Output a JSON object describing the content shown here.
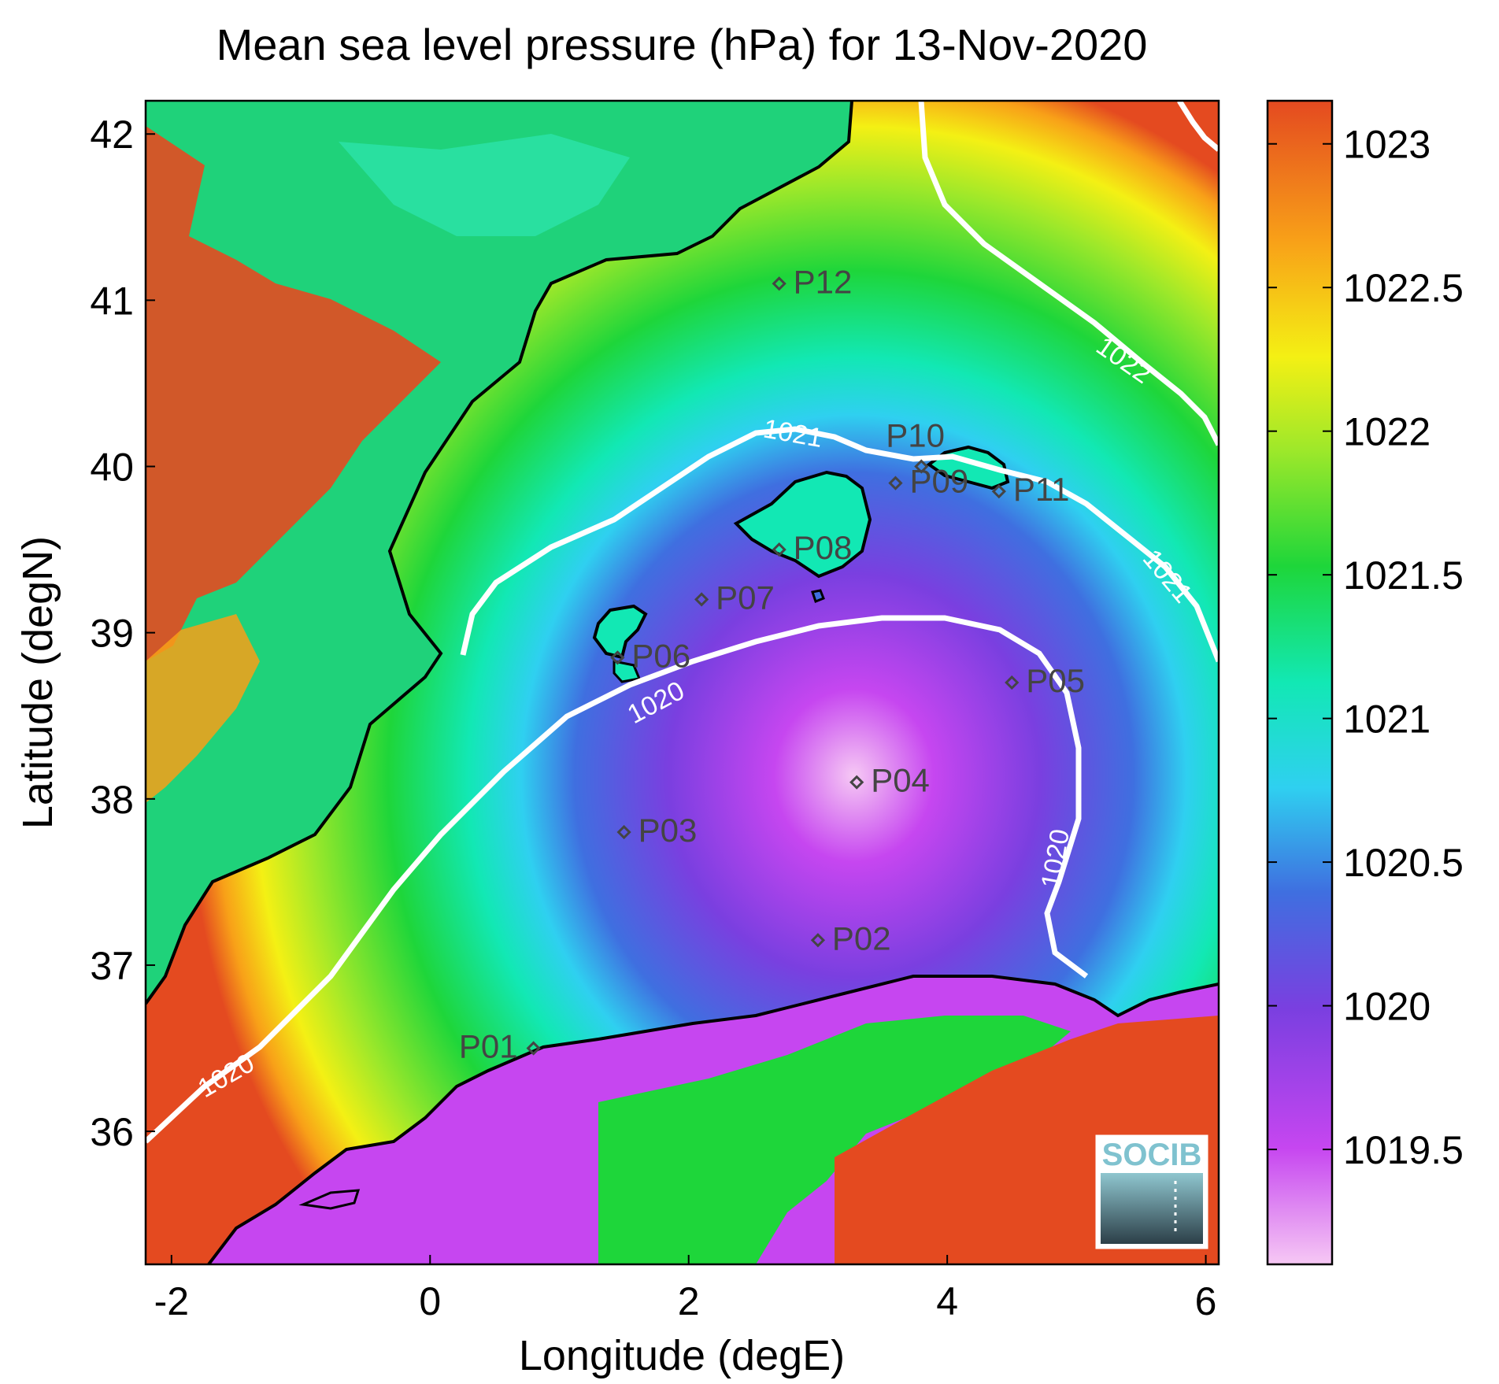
{
  "title": "Mean sea level pressure (hPa) for 13-Nov-2020",
  "xlabel": "Longitude (degE)",
  "ylabel": "Latitude (degN)",
  "xlim": [
    -2.2,
    6.1
  ],
  "ylim": [
    35.2,
    42.2
  ],
  "xticks": [
    -2,
    0,
    2,
    4,
    6
  ],
  "yticks": [
    36,
    37,
    38,
    39,
    40,
    41,
    42
  ],
  "colorbar": {
    "range": [
      1019.1,
      1023.15
    ],
    "ticks": [
      "1023",
      "1022.5",
      "1022",
      "1021.5",
      "1021",
      "1020.5",
      "1020",
      "1019.5"
    ],
    "tick_values": [
      1023,
      1022.5,
      1022,
      1021.5,
      1021,
      1020.5,
      1020,
      1019.5
    ],
    "colors_low_to_high": [
      "#f6c8f4",
      "#c646f0",
      "#7a3fe0",
      "#3f6fe0",
      "#2fd0f0",
      "#12e8b4",
      "#1ed63a",
      "#9ee82a",
      "#f4f014",
      "#f8a018",
      "#e44a20"
    ]
  },
  "contour_labels": [
    "1020",
    "1020",
    "1020",
    "1021",
    "1021",
    "1022"
  ],
  "stations": [
    {
      "id": "P01",
      "lon": 0.8,
      "lat": 36.5
    },
    {
      "id": "P02",
      "lon": 3.0,
      "lat": 37.15
    },
    {
      "id": "P03",
      "lon": 1.5,
      "lat": 37.8
    },
    {
      "id": "P04",
      "lon": 3.3,
      "lat": 38.1
    },
    {
      "id": "P05",
      "lon": 4.5,
      "lat": 38.7
    },
    {
      "id": "P06",
      "lon": 1.45,
      "lat": 38.85
    },
    {
      "id": "P07",
      "lon": 2.1,
      "lat": 39.2
    },
    {
      "id": "P08",
      "lon": 2.7,
      "lat": 39.5
    },
    {
      "id": "P09",
      "lon": 3.6,
      "lat": 39.9
    },
    {
      "id": "P10",
      "lon": 3.8,
      "lat": 40.0
    },
    {
      "id": "P11",
      "lon": 4.4,
      "lat": 39.85
    },
    {
      "id": "P12",
      "lon": 2.7,
      "lat": 41.1
    }
  ],
  "logo_text": "SOCIB"
}
